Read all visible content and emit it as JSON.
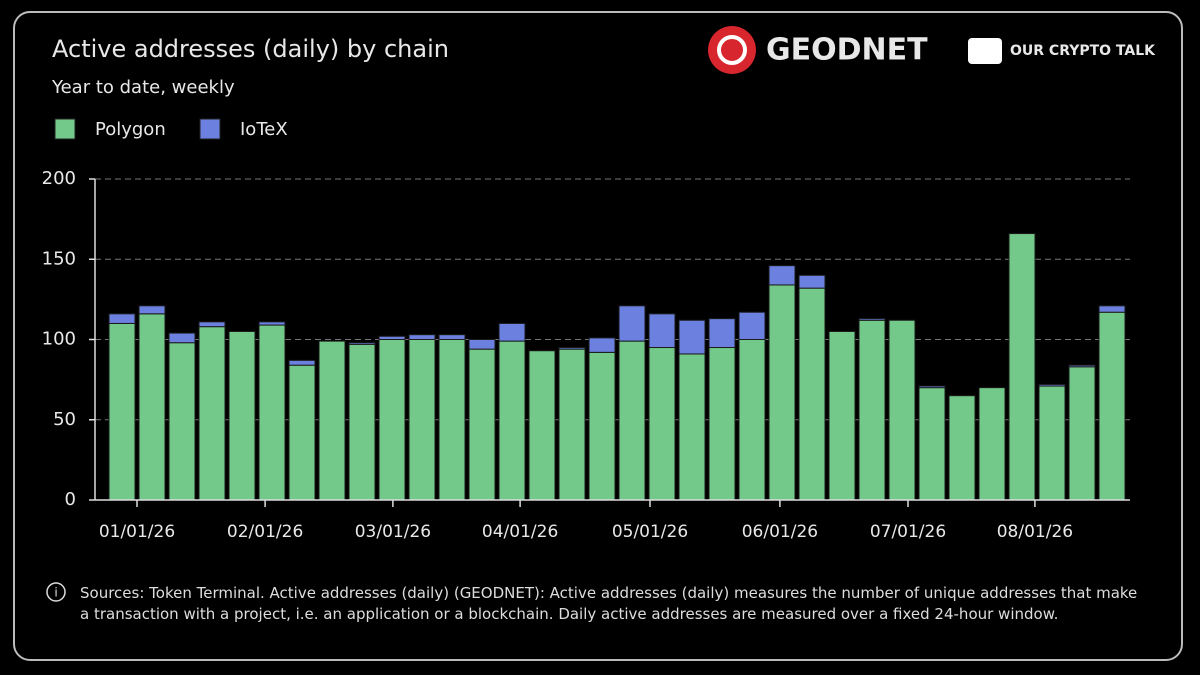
{
  "chart_data": {
    "type": "stacked-bar",
    "title": "Active addresses (daily) by chain",
    "subtitle": "Year to date, weekly",
    "categories": [
      null,
      null,
      null,
      null,
      null,
      null,
      null,
      null,
      null,
      null,
      null,
      null,
      null,
      null,
      null,
      null,
      null,
      null,
      null,
      null,
      null,
      null,
      null,
      null,
      null,
      null,
      null,
      null,
      null,
      null,
      null,
      null,
      null,
      null
    ],
    "series": [
      {
        "name": "Polygon",
        "color": "#72c98a",
        "values": [
          110,
          116,
          98,
          108,
          105,
          109,
          84,
          99,
          97,
          100,
          100,
          100,
          94,
          99,
          93,
          94,
          92,
          99,
          95,
          91,
          95,
          100,
          134,
          132,
          105,
          112,
          112,
          70,
          65,
          70,
          166,
          71,
          83,
          117
        ]
      },
      {
        "name": "IoTeX",
        "color": "#6b80df",
        "values": [
          6,
          5,
          6,
          3,
          0,
          2,
          3,
          0,
          1,
          2,
          3,
          3,
          6,
          11,
          0,
          1,
          9,
          22,
          21,
          21,
          18,
          17,
          12,
          8,
          0,
          1,
          0,
          1,
          0,
          0,
          0,
          1,
          1,
          4
        ]
      }
    ],
    "ylim": [
      0,
      200
    ],
    "yticks": [
      0,
      50,
      100,
      150,
      200
    ],
    "xticks": [
      {
        "value": 0.5,
        "label": "01/01/26"
      },
      {
        "value": 4.77,
        "label": "02/01/26"
      },
      {
        "value": 9.03,
        "label": "03/01/26"
      },
      {
        "value": 13.27,
        "label": "04/01/26"
      },
      {
        "value": 17.6,
        "label": "05/01/26"
      },
      {
        "value": 21.93,
        "label": "06/01/26"
      },
      {
        "value": 26.2,
        "label": "07/01/26"
      },
      {
        "value": 30.43,
        "label": "08/01/26"
      }
    ],
    "grid": true,
    "legend": "top-left",
    "note": "Sources: Token Terminal. Active addresses (daily) (GEODNET): Active addresses (daily) measures the number of unique addresses that make a transaction with a project, i.e. an application or a blockchain. Daily active addresses are measured over a fixed 24-hour window."
  },
  "logos": [
    "GEODNET",
    "OUR CRYPTO TALK"
  ]
}
